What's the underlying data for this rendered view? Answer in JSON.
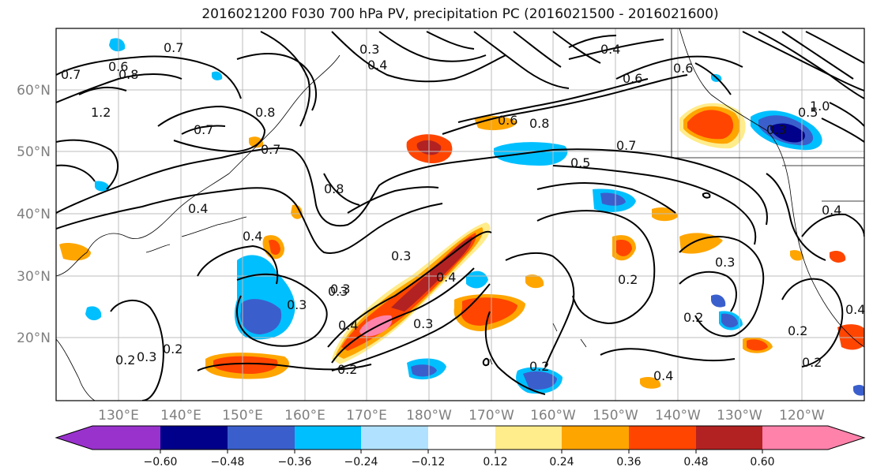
{
  "title": "2016021200 F030 700 hPa PV, precipitation PC (2016021500 - 2016021600)",
  "lat_labels": [
    "60°N",
    "50°N",
    "40°N",
    "30°N",
    "20°N"
  ],
  "lon_labels": [
    "130°E",
    "140°E",
    "150°E",
    "160°E",
    "170°E",
    "180°W",
    "170°W",
    "160°W",
    "150°W",
    "140°W",
    "130°W",
    "120°W"
  ],
  "contour_labels": [
    "0.7",
    "0.6",
    "0.7",
    "0.8",
    "1.2",
    "0.8",
    "0.7",
    "0.7",
    "0.4",
    "0.8",
    "0.4",
    "0.3",
    "0.4",
    "0.6",
    "0.8",
    "0.7",
    "0.5",
    "0.6",
    "0.6",
    "0.4",
    "0.3",
    "0.5",
    "1.0",
    "0.4",
    "0.3",
    "0.3",
    "0.3",
    "0.4",
    "0.4",
    "0.3",
    "0.2",
    "0.2",
    "0.3",
    "0.2",
    "0.2",
    "0.2",
    "0.2",
    "0.4",
    "0.2",
    "0.2",
    "0.4",
    "0.3",
    "0.3"
  ],
  "colorbar": {
    "ticks": [
      "−0.60",
      "−0.48",
      "−0.36",
      "−0.24",
      "−0.12",
      "0.12",
      "0.24",
      "0.36",
      "0.48",
      "0.60"
    ],
    "colors": [
      "#9932cc",
      "#00008b",
      "#3a5fcd",
      "#00bfff",
      "#b0e2ff",
      "#ffffff",
      "#ffec8b",
      "#ffa500",
      "#ff4500",
      "#b22222",
      "#ff82ab"
    ]
  }
}
